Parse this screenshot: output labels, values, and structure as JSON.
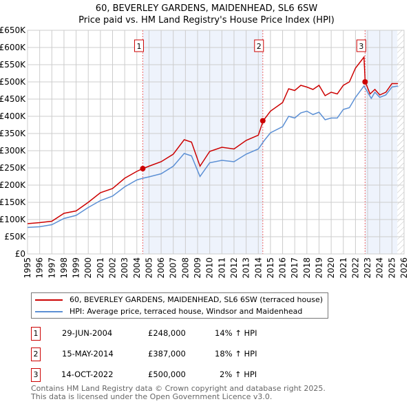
{
  "title": "60, BEVERLEY GARDENS, MAIDENHEAD, SL6 6SW",
  "subtitle": "Price paid vs. HM Land Registry's House Price Index (HPI)",
  "chart_data": {
    "type": "line",
    "ylim": [
      0,
      650000
    ],
    "xlim": [
      1995,
      2026
    ],
    "yticks": [
      0,
      50000,
      100000,
      150000,
      200000,
      250000,
      300000,
      350000,
      400000,
      450000,
      500000,
      550000,
      600000,
      650000
    ],
    "ytick_labels": [
      "£0",
      "£50K",
      "£100K",
      "£150K",
      "£200K",
      "£250K",
      "£300K",
      "£350K",
      "£400K",
      "£450K",
      "£500K",
      "£550K",
      "£600K",
      "£650K"
    ],
    "xtick_labels": [
      "1995",
      "1996",
      "1997",
      "1998",
      "1999",
      "2000",
      "2001",
      "2002",
      "2003",
      "2004",
      "2005",
      "2006",
      "2007",
      "2008",
      "2009",
      "2010",
      "2011",
      "2012",
      "2013",
      "2014",
      "2015",
      "2016",
      "2017",
      "2018",
      "2019",
      "2020",
      "2021",
      "2022",
      "2023",
      "2024",
      "2025",
      "2026"
    ],
    "grid": true,
    "legend_placement": "below",
    "series": [
      {
        "name": "60, BEVERLEY GARDENS, MAIDENHEAD, SL6 6SW (terraced house)",
        "color": "#cc0000",
        "x": [
          1995,
          1996,
          1997,
          1998,
          1999,
          2000,
          2001,
          2002,
          2003,
          2004,
          2004.5,
          2005,
          2006,
          2007,
          2007.9,
          2008.5,
          2009.2,
          2010,
          2011,
          2012,
          2013,
          2014,
          2014.4,
          2015,
          2016,
          2016.5,
          2017,
          2017.5,
          2018,
          2018.5,
          2019,
          2019.5,
          2020,
          2020.5,
          2021,
          2021.5,
          2022,
          2022.7,
          2022.8,
          2023.2,
          2023.6,
          2024,
          2024.5,
          2025,
          2025.5
        ],
        "y": [
          88000,
          91000,
          95000,
          118000,
          125000,
          150000,
          178000,
          190000,
          220000,
          240000,
          248000,
          255000,
          268000,
          290000,
          332000,
          325000,
          255000,
          298000,
          310000,
          305000,
          330000,
          345000,
          387000,
          415000,
          440000,
          480000,
          475000,
          490000,
          485000,
          478000,
          490000,
          460000,
          470000,
          465000,
          490000,
          500000,
          540000,
          572000,
          500000,
          465000,
          478000,
          462000,
          470000,
          495000,
          495000
        ]
      },
      {
        "name": "HPI: Average price, terraced house, Windsor and Maidenhead",
        "color": "#5b8fd4",
        "x": [
          1995,
          1996,
          1997,
          1998,
          1999,
          2000,
          2001,
          2002,
          2003,
          2004,
          2004.5,
          2005,
          2006,
          2007,
          2007.9,
          2008.5,
          2009.2,
          2010,
          2011,
          2012,
          2013,
          2014,
          2014.5,
          2015,
          2016,
          2016.5,
          2017,
          2017.5,
          2018,
          2018.5,
          2019,
          2019.5,
          2020,
          2020.5,
          2021,
          2021.5,
          2022,
          2022.7,
          2023,
          2023.3,
          2023.6,
          2024,
          2024.5,
          2025,
          2025.5
        ],
        "y": [
          77000,
          79000,
          85000,
          103000,
          112000,
          135000,
          155000,
          168000,
          195000,
          215000,
          220000,
          224000,
          233000,
          255000,
          292000,
          285000,
          225000,
          265000,
          272000,
          268000,
          290000,
          305000,
          330000,
          352000,
          370000,
          400000,
          395000,
          410000,
          415000,
          405000,
          412000,
          390000,
          395000,
          395000,
          420000,
          425000,
          455000,
          488000,
          470000,
          452000,
          470000,
          455000,
          462000,
          485000,
          488000
        ]
      }
    ],
    "sales": [
      {
        "label": "1",
        "x": 2004.49,
        "y": 248000,
        "date": "29-JUN-2004",
        "price": "£248,000",
        "hpi": "14% ↑ HPI"
      },
      {
        "label": "2",
        "x": 2014.37,
        "y": 387000,
        "date": "15-MAY-2014",
        "price": "£387,000",
        "hpi": "18% ↑ HPI"
      },
      {
        "label": "3",
        "x": 2022.79,
        "y": 500000,
        "date": "14-OCT-2022",
        "price": "£500,000",
        "hpi": "2% ↑ HPI"
      }
    ],
    "shaded_ranges": [
      [
        2004.49,
        2014.37
      ],
      [
        2022.79,
        2025.45
      ]
    ],
    "forecast_from": 2025.45
  },
  "footer": [
    "Contains HM Land Registry data © Crown copyright and database right 2025.",
    "This data is licensed under the Open Government Licence v3.0."
  ]
}
